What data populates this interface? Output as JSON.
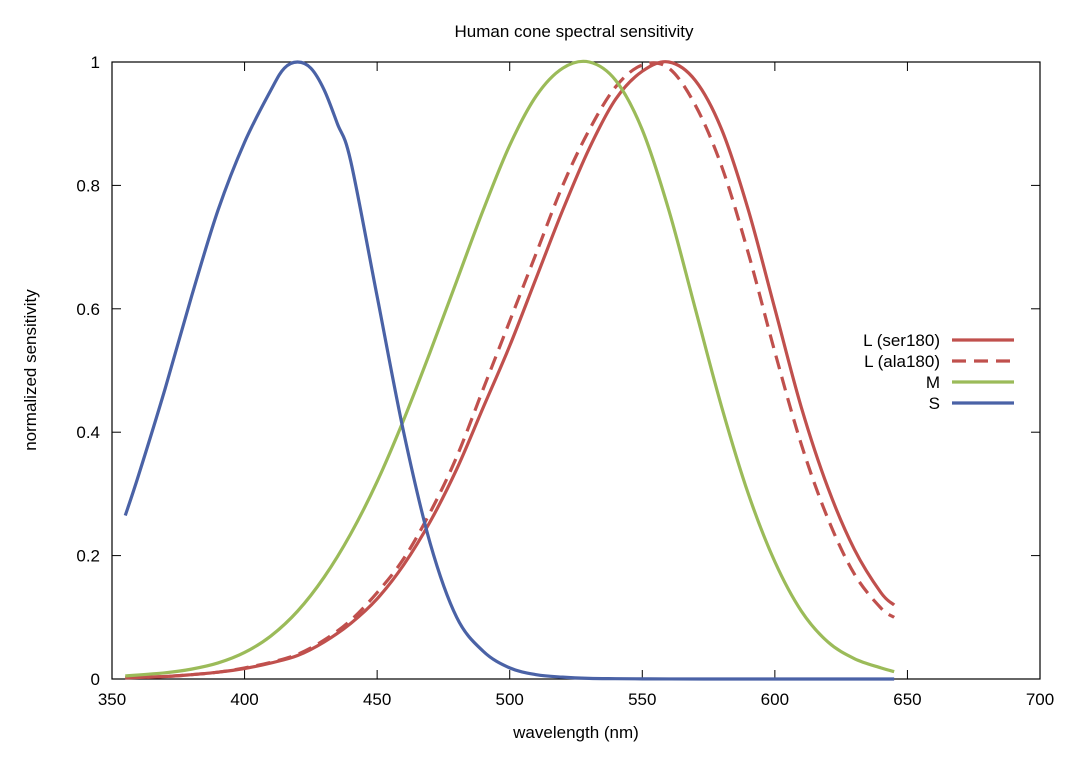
{
  "chart_data": {
    "type": "line",
    "title": "Human cone spectral sensitivity",
    "xlabel": "wavelength (nm)",
    "ylabel": "normalized sensitivity",
    "xlim": [
      350,
      700
    ],
    "ylim": [
      0,
      1
    ],
    "xticks": [
      350,
      400,
      450,
      500,
      550,
      600,
      650,
      700
    ],
    "xtick_labels": [
      "350",
      "400",
      "450",
      "500",
      "550",
      "600",
      "650",
      "700"
    ],
    "yticks": [
      0,
      0.2,
      0.4,
      0.6,
      0.8,
      1
    ],
    "ytick_labels": [
      "0",
      "0.2",
      "0.4",
      "0.6",
      "0.8",
      "1"
    ],
    "grid": false,
    "legend_position": "right",
    "series": [
      {
        "name": "L (ser180)",
        "color": "#c0504d",
        "dash": "solid",
        "x": [
          355,
          370,
          380,
          390,
          400,
          410,
          420,
          430,
          440,
          450,
          460,
          470,
          480,
          490,
          500,
          510,
          520,
          530,
          540,
          550,
          560,
          570,
          580,
          590,
          600,
          610,
          620,
          630,
          640,
          645
        ],
        "y": [
          0.002,
          0.004,
          0.007,
          0.011,
          0.017,
          0.026,
          0.038,
          0.06,
          0.09,
          0.13,
          0.185,
          0.255,
          0.34,
          0.44,
          0.54,
          0.65,
          0.76,
          0.86,
          0.94,
          0.985,
          1.0,
          0.97,
          0.89,
          0.76,
          0.6,
          0.44,
          0.31,
          0.21,
          0.14,
          0.12
        ]
      },
      {
        "name": "L (ala180)",
        "color": "#c0504d",
        "dash": "dashed",
        "x": [
          355,
          370,
          380,
          390,
          400,
          410,
          420,
          430,
          440,
          450,
          460,
          470,
          480,
          490,
          500,
          510,
          520,
          530,
          540,
          550,
          560,
          570,
          580,
          590,
          600,
          610,
          620,
          630,
          640,
          645
        ],
        "y": [
          0.002,
          0.004,
          0.007,
          0.011,
          0.018,
          0.027,
          0.04,
          0.063,
          0.095,
          0.14,
          0.195,
          0.27,
          0.36,
          0.47,
          0.58,
          0.69,
          0.8,
          0.89,
          0.96,
          0.995,
          0.99,
          0.93,
          0.83,
          0.69,
          0.53,
          0.38,
          0.26,
          0.17,
          0.115,
          0.1
        ]
      },
      {
        "name": "M",
        "color": "#9bbb59",
        "dash": "solid",
        "x": [
          355,
          370,
          380,
          390,
          400,
          410,
          420,
          430,
          440,
          450,
          460,
          470,
          480,
          490,
          500,
          510,
          520,
          530,
          540,
          550,
          560,
          570,
          580,
          590,
          600,
          610,
          620,
          630,
          640,
          645
        ],
        "y": [
          0.005,
          0.01,
          0.016,
          0.026,
          0.043,
          0.07,
          0.11,
          0.165,
          0.235,
          0.32,
          0.42,
          0.53,
          0.645,
          0.76,
          0.865,
          0.945,
          0.99,
          1.0,
          0.97,
          0.89,
          0.76,
          0.6,
          0.44,
          0.3,
          0.19,
          0.11,
          0.06,
          0.033,
          0.018,
          0.012
        ]
      },
      {
        "name": "S",
        "color": "#4a62a6",
        "dash": "solid",
        "x": [
          355,
          360,
          370,
          380,
          390,
          400,
          410,
          415,
          420,
          425,
          430,
          435,
          440,
          450,
          460,
          470,
          480,
          490,
          500,
          510,
          520,
          530,
          540,
          550,
          560,
          580,
          600,
          620,
          645
        ],
        "y": [
          0.265,
          0.33,
          0.47,
          0.62,
          0.76,
          0.87,
          0.955,
          0.99,
          1.0,
          0.99,
          0.955,
          0.9,
          0.84,
          0.62,
          0.4,
          0.22,
          0.1,
          0.045,
          0.018,
          0.007,
          0.003,
          0.001,
          0.0005,
          0.0002,
          0.0001,
          0.0,
          0.0,
          0.0,
          0.0
        ]
      }
    ]
  }
}
